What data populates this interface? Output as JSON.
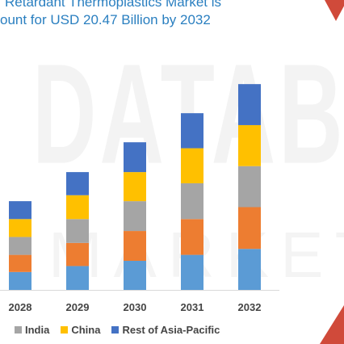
{
  "title": {
    "line1": "Retardant Thermoplastics Market is",
    "line2": "ount for USD 20.47 Billion by 2032"
  },
  "watermark": {
    "line1": "DATABR",
    "line2": "MARKET RE"
  },
  "chart_data": {
    "type": "bar",
    "stacked": true,
    "categories": [
      "2028",
      "2029",
      "2030",
      "2031",
      "2032"
    ],
    "series": [
      {
        "name": "",
        "color": "#5b9bd5",
        "values": [
          24,
          32,
          39,
          47,
          55
        ]
      },
      {
        "name": "",
        "color": "#ed7d31",
        "values": [
          23,
          31,
          40,
          48,
          56
        ]
      },
      {
        "name": "India",
        "color": "#a5a5a5",
        "values": [
          24,
          32,
          40,
          48,
          55
        ]
      },
      {
        "name": "China",
        "color": "#ffc000",
        "values": [
          24,
          32,
          39,
          47,
          55
        ]
      },
      {
        "name": "Rest of Asia-Pacific",
        "color": "#4472c4",
        "values": [
          24,
          31,
          40,
          47,
          55
        ]
      }
    ],
    "ylim": [
      0,
      300
    ],
    "grid": false,
    "legend_position": "bottom"
  }
}
